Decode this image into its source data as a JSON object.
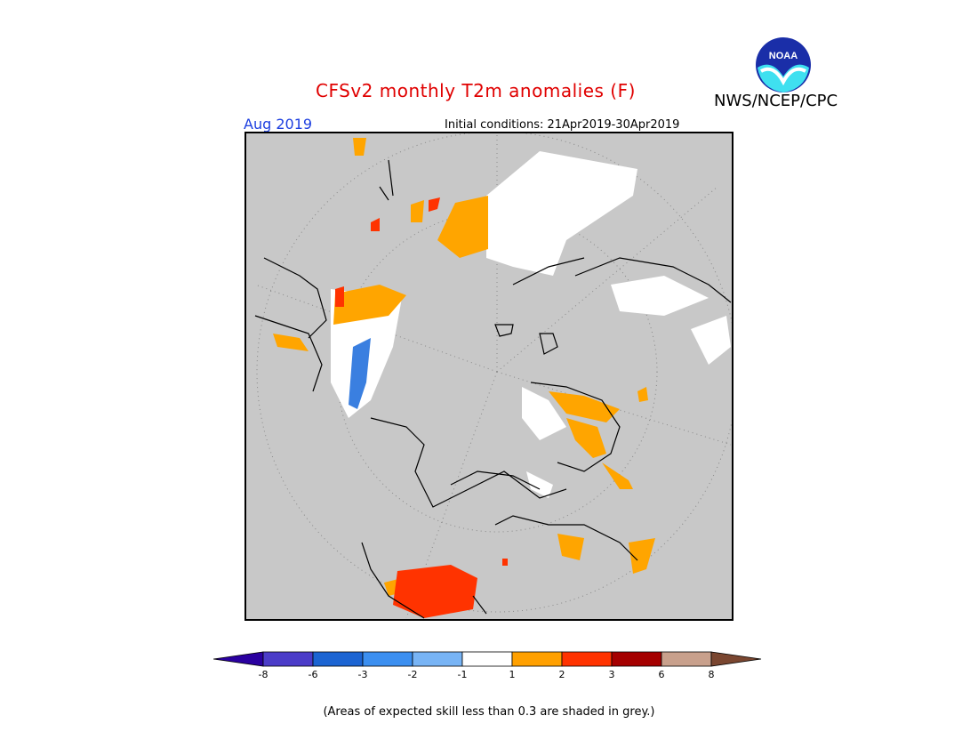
{
  "header": {
    "title": "CFSv2 monthly T2m anomalies (F)",
    "agency": "NWS/NCEP/CPC",
    "logo_text": "NOAA",
    "month": "Aug 2019",
    "initial_conditions": "Initial conditions: 21Apr2019-30Apr2019"
  },
  "colors": {
    "skill_grey": "#c8c8c8",
    "orange": "#ffa500",
    "red": "#ff3300",
    "white": "#ffffff",
    "light_blue": "#6fa8ff",
    "blue": "#3a7fe0"
  },
  "legend": {
    "labels": [
      "-8",
      "-6",
      "-3",
      "-2",
      "-1",
      "1",
      "2",
      "3",
      "6",
      "8"
    ],
    "colors": [
      "#2a00a0",
      "#4b3cc8",
      "#1c64d2",
      "#3c8ff0",
      "#78b4f5",
      "#ffffff",
      "#ffa000",
      "#ff3300",
      "#a50000",
      "#c8a08c",
      "#7a4630"
    ]
  },
  "footnote": "(Areas of expected skill less than 0.3 are shaded in grey.)"
}
